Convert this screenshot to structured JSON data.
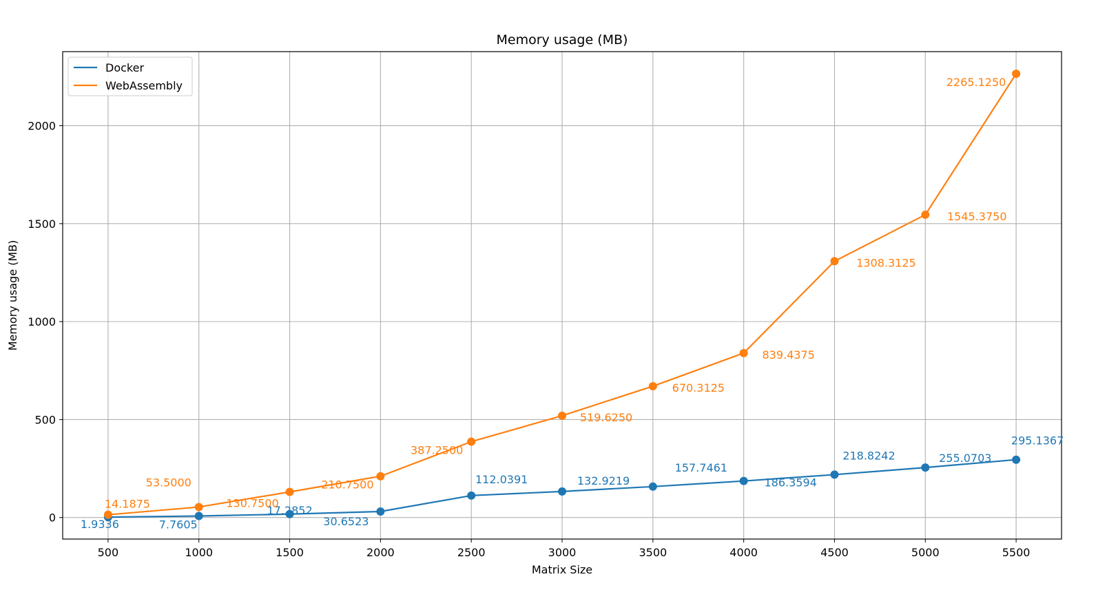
{
  "chart_data": {
    "type": "line",
    "title": "Memory usage (MB)",
    "xlabel": "Matrix Size",
    "ylabel": "Memory usage (MB)",
    "x": [
      500,
      1000,
      1500,
      2000,
      2500,
      3000,
      3500,
      4000,
      4500,
      5000,
      5500
    ],
    "xticks": [
      500,
      1000,
      1500,
      2000,
      2500,
      3000,
      3500,
      4000,
      4500,
      5000,
      5500
    ],
    "yticks": [
      0,
      500,
      1000,
      1500,
      2000
    ],
    "xlim": [
      250,
      5750
    ],
    "ylim": [
      -110,
      2378
    ],
    "grid": true,
    "legend": "top-left",
    "series": [
      {
        "name": "Docker",
        "color": "#1f77b4",
        "values": [
          1.9336,
          7.7605,
          17.2852,
          30.6523,
          112.0391,
          132.9219,
          157.7461,
          186.3594,
          218.8242,
          255.0703,
          295.1367
        ],
        "labels": [
          "1.9336",
          "7.7605",
          "17.2852",
          "30.6523",
          "112.0391",
          "132.9219",
          "157.7461",
          "186.3594",
          "218.8242",
          "255.0703",
          "295.1367"
        ]
      },
      {
        "name": "WebAssembly",
        "color": "#ff7f0e",
        "values": [
          14.1875,
          53.5,
          130.75,
          210.75,
          387.25,
          519.625,
          670.3125,
          839.4375,
          1308.3125,
          1545.375,
          2265.125
        ],
        "labels": [
          "14.1875",
          "53.5000",
          "130.7500",
          "210.7500",
          "387.2500",
          "519.6250",
          "670.3125",
          "839.4375",
          "1308.3125",
          "1545.3750",
          "2265.1250"
        ]
      }
    ]
  }
}
